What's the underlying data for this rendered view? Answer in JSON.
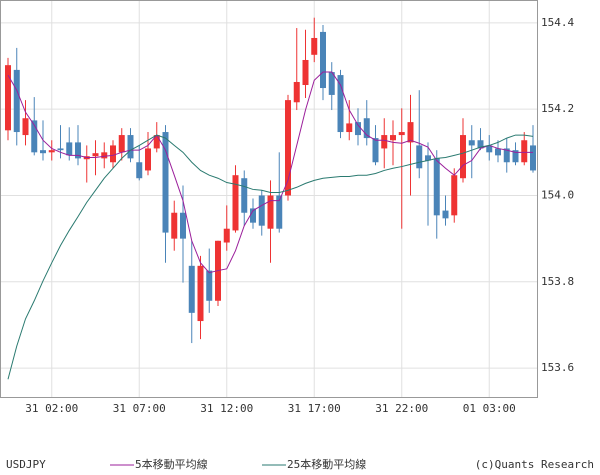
{
  "chart_data": {
    "type": "candlestick",
    "symbol": "USDJPY",
    "credit": "(c)Quants Research",
    "categories": [
      null,
      null,
      null,
      null,
      null,
      "31 02:00",
      null,
      null,
      null,
      null,
      null,
      null,
      null,
      null,
      null,
      "31 07:00",
      null,
      null,
      null,
      null,
      null,
      null,
      null,
      null,
      null,
      "31 12:00",
      null,
      null,
      null,
      null,
      null,
      null,
      null,
      null,
      null,
      "31 17:00",
      null,
      null,
      null,
      null,
      null,
      null,
      null,
      null,
      null,
      "31 22:00",
      null,
      null,
      null,
      null,
      null,
      null,
      null,
      null,
      null,
      "01 03:00",
      null,
      null,
      null,
      null,
      null
    ],
    "open": [
      154.151,
      154.291,
      154.14,
      154.174,
      154.105,
      154.1,
      154.109,
      154.123,
      154.123,
      154.084,
      154.091,
      154.086,
      154.077,
      154.1,
      154.14,
      154.077,
      154.058,
      154.109,
      154.147,
      153.9,
      153.96,
      153.837,
      153.709,
      153.826,
      153.756,
      153.891,
      153.919,
      154.04,
      153.97,
      154.0,
      153.923,
      154.0,
      154.0,
      154.216,
      154.256,
      154.326,
      154.379,
      154.286,
      154.279,
      154.147,
      154.17,
      154.179,
      154.133,
      154.109,
      154.128,
      154.14,
      154.123,
      154.116,
      154.093,
      154.086,
      153.965,
      153.954,
      154.04,
      154.128,
      154.128,
      154.116,
      154.109,
      154.109,
      154.105,
      154.077,
      154.116
    ],
    "high": [
      154.319,
      154.342,
      154.221,
      154.228,
      154.174,
      154.128,
      154.163,
      154.158,
      154.163,
      154.116,
      154.128,
      154.123,
      154.128,
      154.156,
      154.156,
      154.116,
      154.147,
      154.17,
      154.163,
      153.988,
      154.023,
      153.895,
      153.86,
      153.877,
      153.895,
      153.977,
      154.07,
      154.058,
      153.993,
      154.012,
      154.035,
      154.1,
      154.233,
      154.388,
      154.384,
      154.412,
      154.395,
      154.309,
      154.291,
      154.221,
      154.202,
      154.221,
      154.163,
      154.179,
      154.174,
      154.202,
      154.233,
      154.244,
      154.123,
      154.105,
      154.0,
      154.063,
      154.179,
      154.163,
      154.156,
      154.14,
      154.128,
      154.133,
      154.123,
      154.147,
      154.163
    ],
    "low": [
      154.128,
      154.116,
      154.116,
      154.093,
      154.081,
      154.081,
      154.086,
      154.081,
      154.07,
      154.03,
      154.047,
      154.063,
      154.063,
      154.081,
      154.077,
      154.035,
      154.047,
      154.1,
      153.844,
      153.872,
      153.798,
      153.658,
      153.667,
      153.728,
      153.744,
      153.872,
      153.914,
      153.93,
      153.923,
      153.907,
      153.844,
      153.914,
      153.988,
      154.198,
      154.226,
      154.309,
      154.221,
      154.198,
      154.133,
      154.128,
      154.116,
      154.116,
      154.07,
      154.063,
      154.07,
      153.923,
      154.0,
      154.04,
      153.93,
      153.9,
      153.93,
      153.937,
      154.03,
      154.04,
      154.105,
      154.081,
      154.077,
      154.053,
      154.07,
      154.07,
      154.053
    ],
    "close": [
      154.302,
      154.147,
      154.179,
      154.1,
      154.098,
      154.105,
      154.105,
      154.093,
      154.086,
      154.091,
      154.098,
      154.1,
      154.116,
      154.14,
      154.086,
      154.04,
      154.109,
      154.14,
      153.914,
      153.96,
      153.9,
      153.728,
      153.837,
      153.756,
      153.895,
      153.923,
      154.047,
      153.96,
      153.937,
      153.93,
      154.0,
      153.923,
      154.221,
      154.263,
      154.314,
      154.365,
      154.249,
      154.233,
      154.147,
      154.167,
      154.14,
      154.133,
      154.077,
      154.14,
      154.14,
      154.147,
      154.17,
      154.063,
      154.081,
      153.954,
      153.947,
      154.047,
      154.14,
      154.116,
      154.109,
      154.1,
      154.093,
      154.077,
      154.077,
      154.128,
      154.058
    ],
    "up_color": "#ee3333",
    "down_color": "#4a84b8",
    "series": [
      {
        "name": "5本移動平均線",
        "color": "#9b1f9b",
        "values": [
          154.279,
          154.244,
          154.193,
          154.163,
          154.128,
          154.109,
          154.1,
          154.093,
          154.093,
          154.088,
          154.088,
          154.091,
          154.093,
          154.1,
          154.105,
          154.105,
          154.116,
          154.14,
          154.105,
          154.047,
          153.988,
          153.895,
          153.844,
          153.821,
          153.826,
          153.83,
          153.872,
          153.93,
          153.965,
          153.977,
          153.988,
          153.988,
          154.035,
          154.116,
          154.198,
          154.267,
          154.286,
          154.286,
          154.256,
          154.198,
          154.163,
          154.14,
          154.128,
          154.128,
          154.123,
          154.121,
          154.128,
          154.121,
          154.112,
          154.081,
          154.063,
          154.047,
          154.07,
          154.081,
          154.109,
          154.116,
          154.109,
          154.105,
          154.1,
          154.1,
          154.1
        ]
      },
      {
        "name": "25本移動平均線",
        "color": "#2a7a70",
        "values": [
          153.574,
          153.651,
          153.714,
          153.756,
          153.802,
          153.844,
          153.884,
          153.919,
          153.951,
          153.984,
          154.012,
          154.04,
          154.063,
          154.086,
          154.105,
          154.116,
          154.128,
          154.14,
          154.133,
          154.116,
          154.1,
          154.077,
          154.058,
          154.047,
          154.04,
          154.03,
          154.026,
          154.021,
          154.014,
          154.012,
          154.007,
          154.007,
          154.012,
          154.019,
          154.028,
          154.035,
          154.04,
          154.042,
          154.044,
          154.044,
          154.047,
          154.047,
          154.051,
          154.058,
          154.063,
          154.067,
          154.072,
          154.077,
          154.081,
          154.086,
          154.088,
          154.093,
          154.098,
          154.105,
          154.112,
          154.116,
          154.123,
          154.133,
          154.14,
          154.14,
          154.137
        ]
      }
    ],
    "ylim": [
      153.533,
      154.453
    ],
    "yticks": [
      153.6,
      153.8,
      {
        "value": 154,
        "label": "154.0"
      },
      154.2,
      154.4
    ],
    "grid": true
  }
}
